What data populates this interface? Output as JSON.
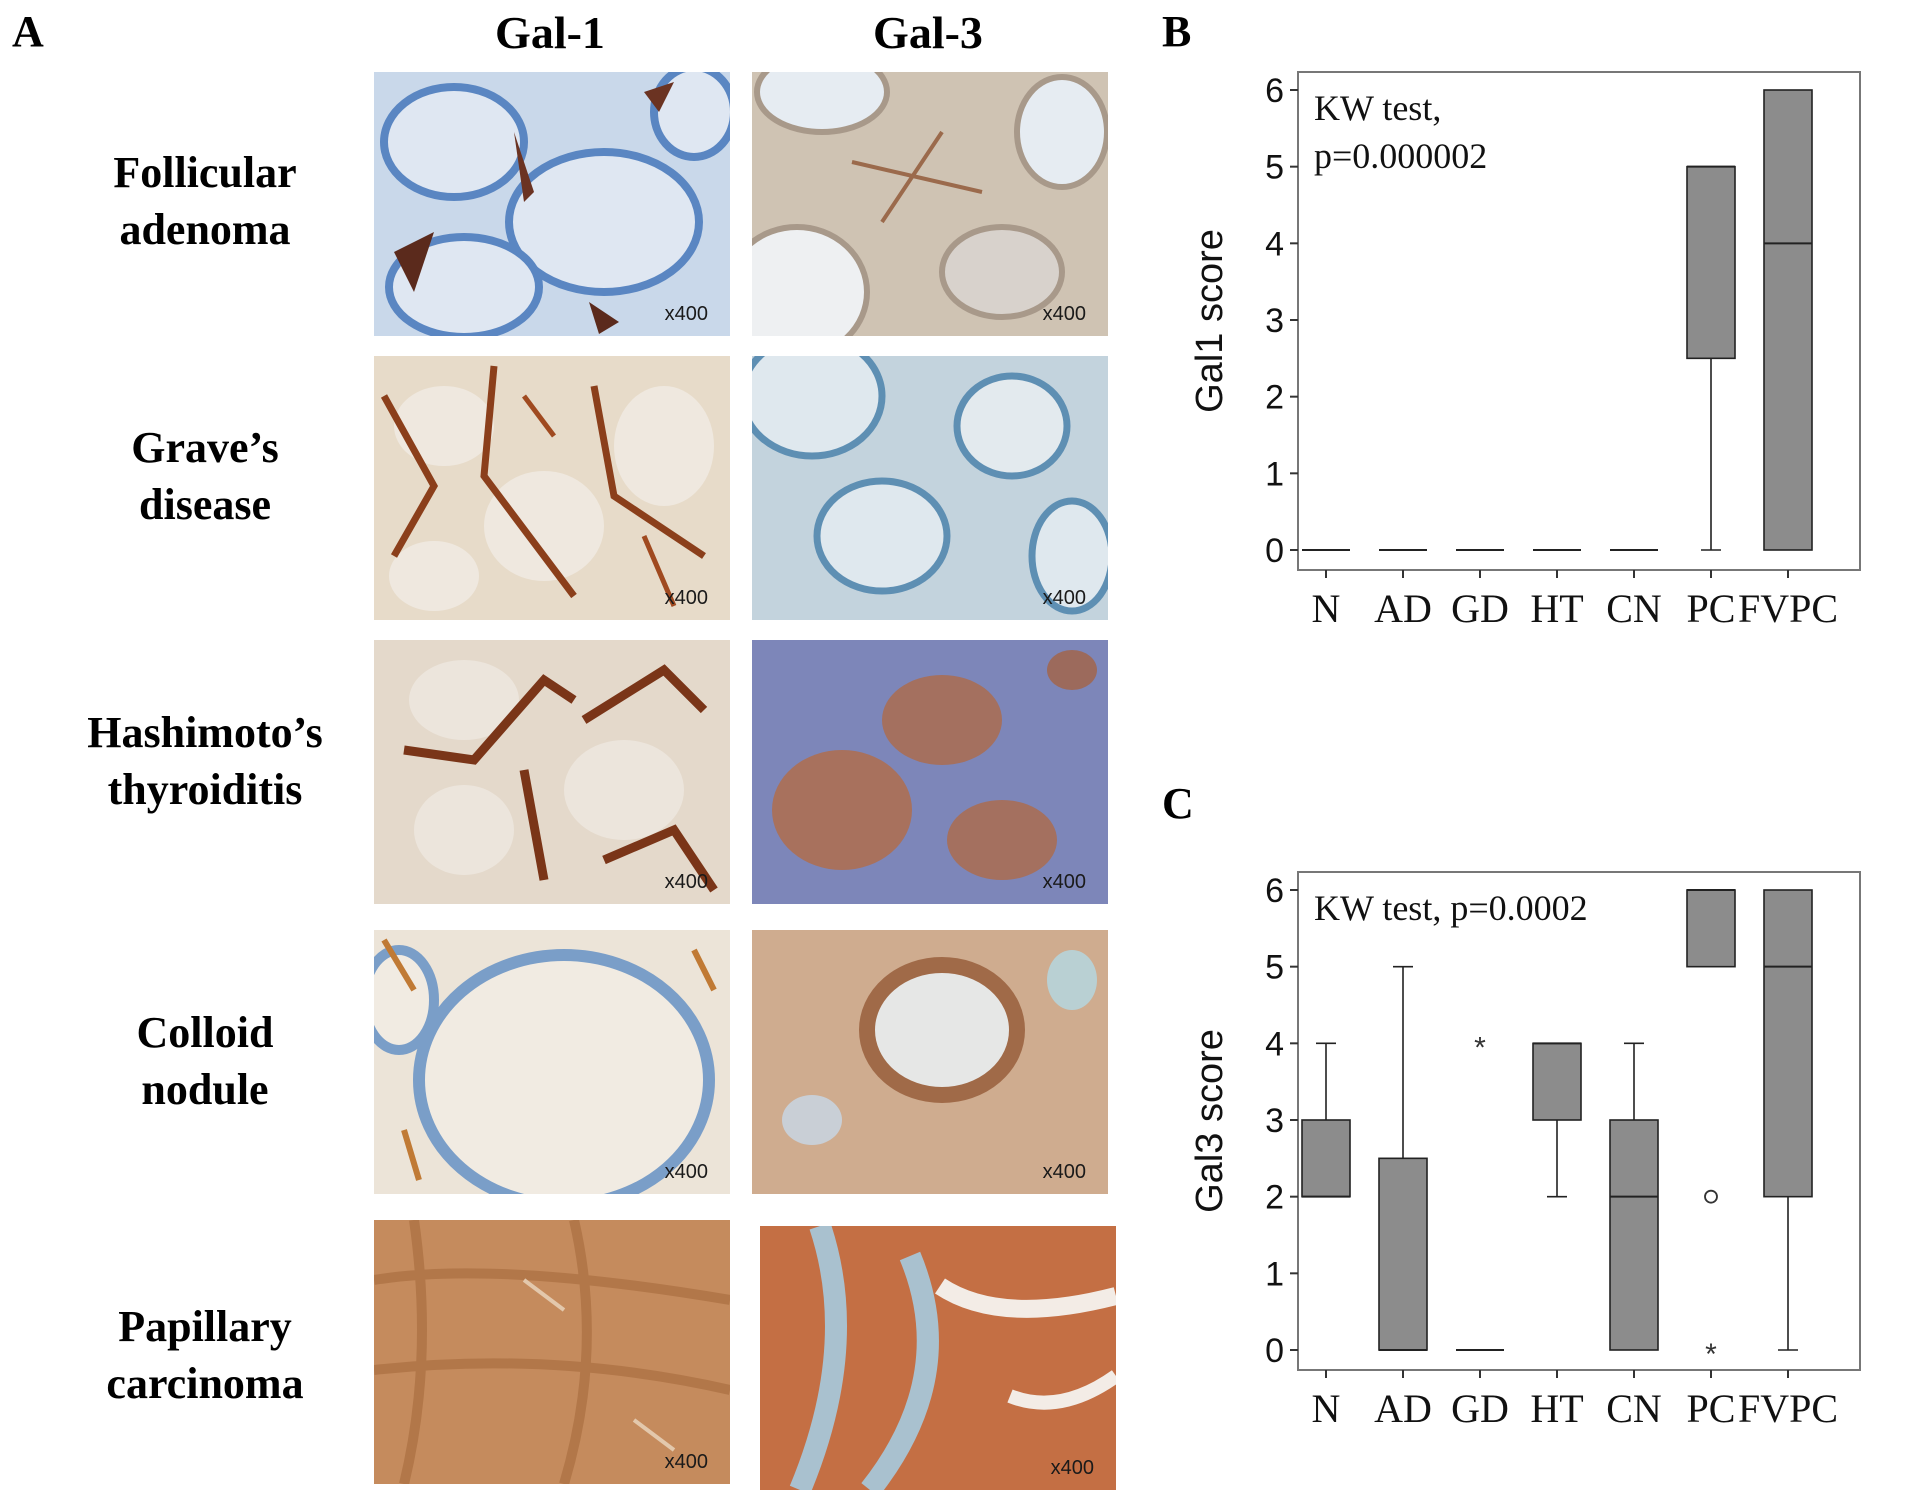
{
  "panels": {
    "a_letter": "A",
    "b_letter": "B",
    "c_letter": "C"
  },
  "columns": [
    "Gal-1",
    "Gal-3"
  ],
  "rows": [
    {
      "line1": "Follicular",
      "line2": "adenoma",
      "gal1_stain": "blue",
      "gal3_stain": "light-brown"
    },
    {
      "line1": "Grave’s",
      "line2": "disease",
      "gal1_stain": "brown-strands",
      "gal3_stain": "blue"
    },
    {
      "line1": "Hashimoto’s",
      "line2": "thyroiditis",
      "gal1_stain": "brown-strands",
      "gal3_stain": "purple-brown"
    },
    {
      "line1": "Colloid",
      "line2": "nodule",
      "gal1_stain": "light",
      "gal3_stain": "brown"
    },
    {
      "line1": "Papillary",
      "line2": "carcinoma",
      "gal1_stain": "dense-brown",
      "gal3_stain": "dense-orange"
    }
  ],
  "magnification": "x400",
  "chart_data": [
    {
      "type": "box",
      "panel": "B",
      "annotation_line1": "KW test,",
      "annotation_line2": "p=0.000002",
      "ylabel": "Gal1 score",
      "ylim": [
        0,
        6
      ],
      "yticks": [
        0,
        1,
        2,
        3,
        4,
        5,
        6
      ],
      "categories": [
        "N",
        "AD",
        "GD",
        "HT",
        "CN",
        "PC",
        "FVPC"
      ],
      "boxes": [
        {
          "q1": 0,
          "median": 0,
          "q3": 0,
          "wlo": 0,
          "whi": 0
        },
        {
          "q1": 0,
          "median": 0,
          "q3": 0,
          "wlo": 0,
          "whi": 0
        },
        {
          "q1": 0,
          "median": 0,
          "q3": 0,
          "wlo": 0,
          "whi": 0
        },
        {
          "q1": 0,
          "median": 0,
          "q3": 0,
          "wlo": 0,
          "whi": 0
        },
        {
          "q1": 0,
          "median": 0,
          "q3": 0,
          "wlo": 0,
          "whi": 0
        },
        {
          "q1": 2.5,
          "median": 5,
          "q3": 5,
          "wlo": 0,
          "whi": 5
        },
        {
          "q1": 0,
          "median": 4,
          "q3": 6,
          "wlo": 0,
          "whi": 6
        }
      ],
      "outliers": [],
      "box_color": "#8c8c8c"
    },
    {
      "type": "box",
      "panel": "C",
      "annotation_line1": "KW test, p=0.0002",
      "annotation_line2": "",
      "ylabel": "Gal3 score",
      "ylim": [
        0,
        6
      ],
      "yticks": [
        0,
        1,
        2,
        3,
        4,
        5,
        6
      ],
      "categories": [
        "N",
        "AD",
        "GD",
        "HT",
        "CN",
        "PC",
        "FVPC"
      ],
      "boxes": [
        {
          "q1": 2,
          "median": 2,
          "q3": 3,
          "wlo": 2,
          "whi": 4
        },
        {
          "q1": 0,
          "median": 0,
          "q3": 2.5,
          "wlo": 0,
          "whi": 5
        },
        {
          "q1": 0,
          "median": 0,
          "q3": 0,
          "wlo": 0,
          "whi": 0
        },
        {
          "q1": 3,
          "median": 4,
          "q3": 4,
          "wlo": 2,
          "whi": 4
        },
        {
          "q1": 0,
          "median": 2,
          "q3": 3,
          "wlo": 0,
          "whi": 4
        },
        {
          "q1": 5,
          "median": 6,
          "q3": 6,
          "wlo": 5,
          "whi": 6
        },
        {
          "q1": 2,
          "median": 5,
          "q3": 6,
          "wlo": 0,
          "whi": 6
        }
      ],
      "outliers": [
        {
          "cat": 2,
          "value": 4,
          "marker": "*"
        },
        {
          "cat": 5,
          "value": 2,
          "marker": "o"
        },
        {
          "cat": 5,
          "value": 0,
          "marker": "*"
        }
      ],
      "box_color": "#8c8c8c"
    }
  ]
}
